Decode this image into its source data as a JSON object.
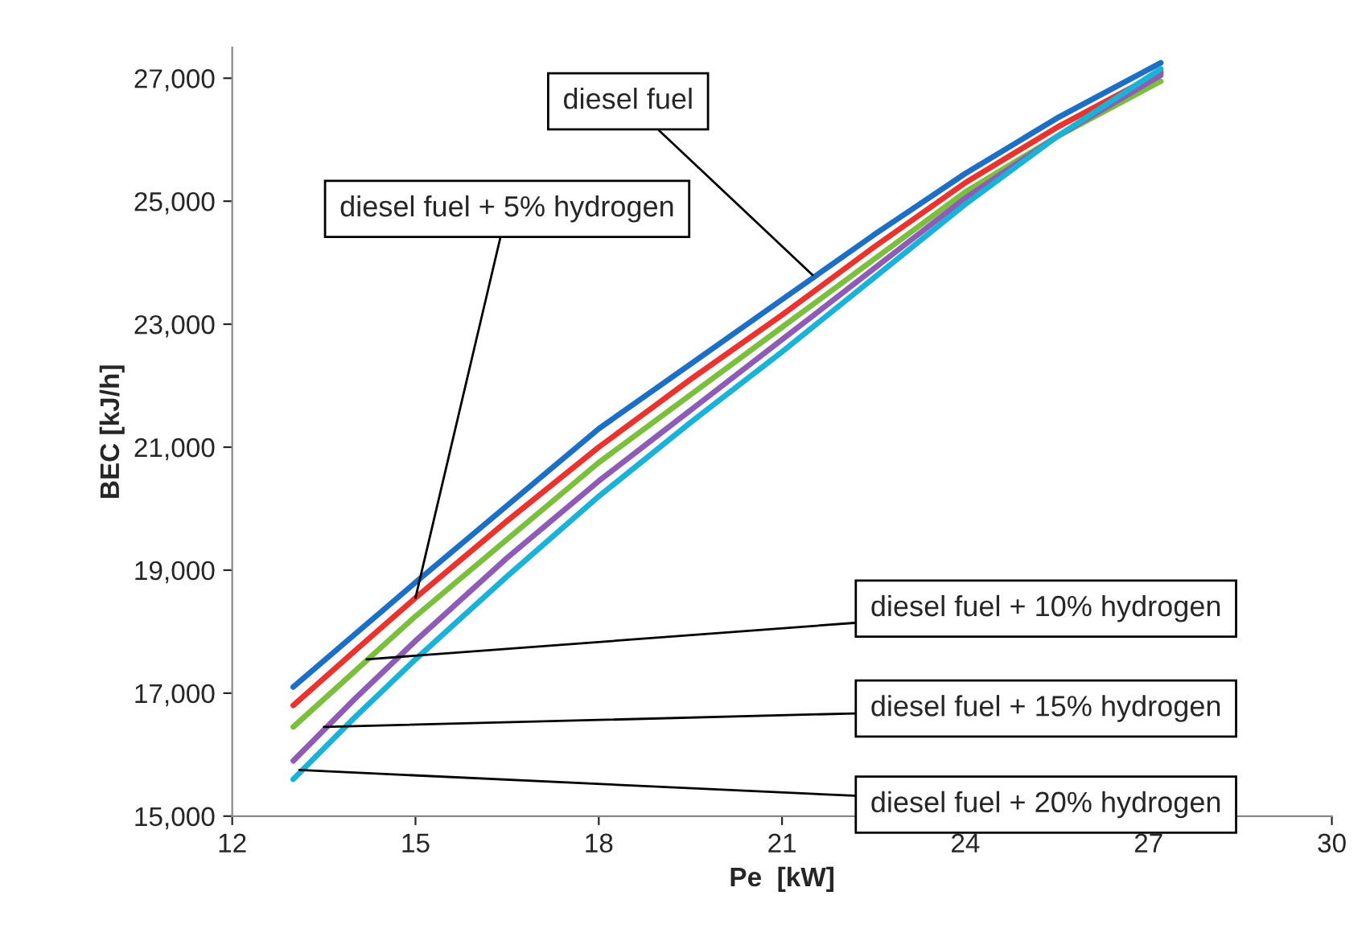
{
  "chart_data": {
    "type": "line",
    "xlabel": "Pe  [kW]",
    "ylabel": "BEC [kJ/h]",
    "x": [
      13,
      14,
      15,
      16.5,
      18,
      19.5,
      21,
      22.5,
      24,
      25.5,
      27.2
    ],
    "series": [
      {
        "color": "#1c6fc4",
        "values": [
          17100,
          17950,
          18800,
          20050,
          21300,
          22350,
          23400,
          24450,
          25450,
          26350,
          27250
        ]
      },
      {
        "color": "#e8332e",
        "values": [
          16800,
          17680,
          18550,
          19800,
          21000,
          22100,
          23150,
          24250,
          25300,
          26200,
          27100
        ]
      },
      {
        "color": "#7cbf3f",
        "values": [
          16450,
          17350,
          18250,
          19500,
          20750,
          21850,
          22950,
          24050,
          25150,
          26050,
          26950
        ]
      },
      {
        "color": "#8e5bb5",
        "values": [
          15900,
          16900,
          17850,
          19200,
          20450,
          21600,
          22750,
          23900,
          25050,
          26050,
          27050
        ]
      },
      {
        "color": "#1ab2d6",
        "values": [
          15600,
          16600,
          17550,
          18900,
          20200,
          21400,
          22550,
          23750,
          24950,
          26050,
          27150
        ]
      }
    ],
    "xlim": [
      12,
      30
    ],
    "xticks": [
      12,
      15,
      18,
      21,
      24,
      27,
      30
    ],
    "ylim": [
      15000,
      27500
    ],
    "yticks": [
      {
        "value": 15000,
        "label": "15,000"
      },
      {
        "value": 17000,
        "label": "17,000"
      },
      {
        "value": 19000,
        "label": "19,000"
      },
      {
        "value": 21000,
        "label": "21,000"
      },
      {
        "value": 23000,
        "label": "23,000"
      },
      {
        "value": 25000,
        "label": "25,000"
      },
      {
        "value": 27000,
        "label": "27,000"
      }
    ],
    "grid": false,
    "legend": false,
    "marker": "none",
    "line_style": "solid",
    "annotations": [
      {
        "text": "diesel fuel",
        "x": 21.5,
        "y": 23800
      },
      {
        "text": "diesel fuel + 5% hydrogen",
        "x": 15,
        "y": 18550
      },
      {
        "text": "diesel fuel + 10% hydrogen",
        "x": 14.2,
        "y": 17550
      },
      {
        "text": "diesel fuel + 15% hydrogen",
        "x": 13.5,
        "y": 16450
      },
      {
        "text": "diesel fuel + 20% hydrogen",
        "x": 13.1,
        "y": 15750
      }
    ]
  }
}
